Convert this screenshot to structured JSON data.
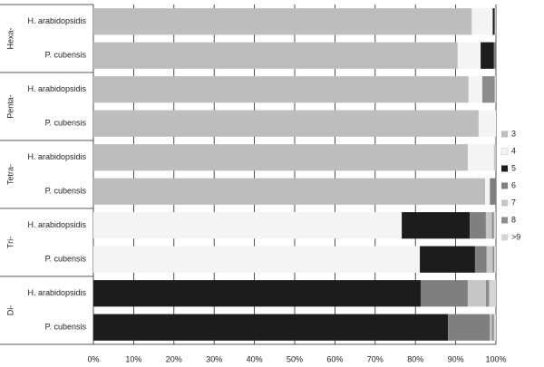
{
  "chart_data": {
    "type": "stacked-bar-horizontal",
    "groups": [
      "Hexa-",
      "Penta-",
      "Tetra-",
      "Tri-",
      "Di-"
    ],
    "categories": [
      "H. arabidopsidis",
      "P. cubensis",
      "H. arabidopsidis",
      "P. cubensis",
      "H. arabidopsidis",
      "P. cubensis",
      "H. arabidopsidis",
      "P. cubensis",
      "H. arabidopsidis",
      "P. cubensis"
    ],
    "series": [
      {
        "name": "3",
        "color": "#bdbdbd",
        "values": [
          94,
          90.5,
          93.2,
          95.7,
          93,
          97.3,
          0,
          0,
          0,
          0
        ]
      },
      {
        "name": "4",
        "color": "#f4f4f4",
        "values": [
          5.2,
          5.7,
          3.4,
          4.3,
          6.5,
          1.2,
          76.6,
          81.1,
          0,
          0
        ]
      },
      {
        "name": "5",
        "color": "#1c1c1c",
        "values": [
          0.5,
          3.3,
          0,
          0,
          0,
          0,
          16.9,
          13.7,
          81.3,
          88.1
        ]
      },
      {
        "name": "6",
        "color": "#7f7f7f",
        "values": [
          0,
          0.5,
          0,
          0,
          0,
          1.5,
          4,
          2.9,
          11.7,
          10.4
        ]
      },
      {
        "name": "7",
        "color": "#c6c6c6",
        "values": [
          0.3,
          0,
          0,
          0,
          0.5,
          0,
          1.5,
          1.5,
          4.5,
          0.5
        ]
      },
      {
        "name": "8",
        "color": "#8c8c8c",
        "values": [
          0,
          0,
          3.1,
          0,
          0,
          0,
          0.5,
          0.4,
          0.8,
          0.5
        ]
      },
      {
        "name": ">9",
        "color": "#d4d4d4",
        "values": [
          0,
          0,
          0.3,
          0,
          0,
          0,
          0.5,
          0.4,
          1.7,
          0.5
        ]
      }
    ],
    "xlim": [
      0,
      100
    ],
    "xticks": [
      {
        "value": 0,
        "label": "0%"
      },
      {
        "value": 10,
        "label": "10%"
      },
      {
        "value": 20,
        "label": "20%"
      },
      {
        "value": 30,
        "label": "30%"
      },
      {
        "value": 40,
        "label": "40%"
      },
      {
        "value": 50,
        "label": "50%"
      },
      {
        "value": 60,
        "label": "60%"
      },
      {
        "value": 70,
        "label": "70%"
      },
      {
        "value": 80,
        "label": "80%"
      },
      {
        "value": 90,
        "label": "90%"
      },
      {
        "value": 100,
        "label": "100%"
      }
    ],
    "grid": true
  }
}
